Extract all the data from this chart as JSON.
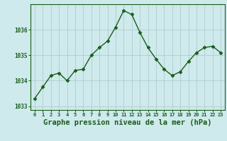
{
  "x": [
    0,
    1,
    2,
    3,
    4,
    5,
    6,
    7,
    8,
    9,
    10,
    11,
    12,
    13,
    14,
    15,
    16,
    17,
    18,
    19,
    20,
    21,
    22,
    23
  ],
  "y": [
    1033.3,
    1033.75,
    1034.2,
    1034.3,
    1034.0,
    1034.4,
    1034.45,
    1035.0,
    1035.3,
    1035.55,
    1036.1,
    1036.75,
    1036.6,
    1035.9,
    1035.3,
    1034.85,
    1034.45,
    1034.2,
    1034.35,
    1034.75,
    1035.1,
    1035.3,
    1035.35,
    1035.1
  ],
  "line_color": "#1a5c1a",
  "marker": "D",
  "marker_size": 2.5,
  "bg_color": "#ceeaec",
  "grid_color": "#b0cccc",
  "xlabel": "Graphe pression niveau de la mer (hPa)",
  "xlabel_color": "#1a5c1a",
  "xlabel_fontsize": 7.5,
  "tick_color": "#1a5c1a",
  "ylim": [
    1032.85,
    1037.0
  ],
  "yticks": [
    1033,
    1034,
    1035,
    1036
  ],
  "xlim": [
    -0.5,
    23.5
  ],
  "xticks": [
    0,
    1,
    2,
    3,
    4,
    5,
    6,
    7,
    8,
    9,
    10,
    11,
    12,
    13,
    14,
    15,
    16,
    17,
    18,
    19,
    20,
    21,
    22,
    23
  ]
}
